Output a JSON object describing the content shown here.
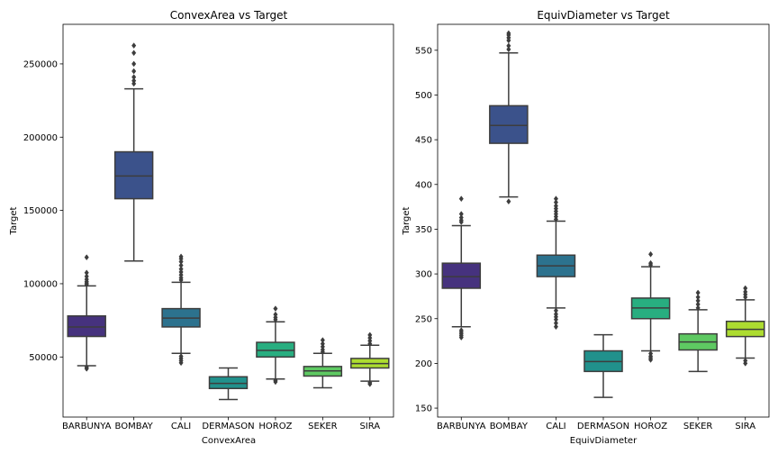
{
  "chart_data": [
    {
      "type": "boxplot",
      "title": "ConvexArea vs Target",
      "xlabel": "ConvexArea",
      "ylabel": "Target",
      "categories": [
        "BARBUNYA",
        "BOMBAY",
        "CALI",
        "DERMASON",
        "HOROZ",
        "SEKER",
        "SIRA"
      ],
      "ylim": [
        9000,
        277000
      ],
      "yticks": [
        50000,
        100000,
        150000,
        200000,
        250000
      ],
      "ytick_labels": [
        "50000",
        "100000",
        "150000",
        "200000",
        "250000"
      ],
      "boxes": [
        {
          "whislo": 44000,
          "q1": 64000,
          "med": 70500,
          "q3": 78000,
          "whishi": 98500,
          "fliers": [
            42000,
            43000,
            99500,
            100500,
            101500,
            103000,
            105000,
            107500,
            118000
          ]
        },
        {
          "whislo": 115500,
          "q1": 158000,
          "med": 173500,
          "q3": 190000,
          "whishi": 233000,
          "fliers": [
            236500,
            238500,
            241000,
            245000,
            250000,
            257500,
            262500
          ]
        },
        {
          "whislo": 52500,
          "q1": 70500,
          "med": 76500,
          "q3": 83000,
          "whishi": 101000,
          "fliers": [
            46000,
            47500,
            49000,
            50500,
            102500,
            104000,
            106000,
            108000,
            110000,
            112500,
            115000,
            117000,
            118500
          ]
        },
        {
          "whislo": 21000,
          "q1": 28500,
          "med": 32000,
          "q3": 36500,
          "whishi": 42500,
          "fliers": []
        },
        {
          "whislo": 35000,
          "q1": 50000,
          "med": 54500,
          "q3": 60000,
          "whishi": 74000,
          "fliers": [
            33000,
            34000,
            75500,
            77000,
            79000,
            83000
          ]
        },
        {
          "whislo": 29000,
          "q1": 37000,
          "med": 40500,
          "q3": 43500,
          "whishi": 52500,
          "fliers": [
            53500,
            55000,
            57000,
            59000,
            61500
          ]
        },
        {
          "whislo": 33500,
          "q1": 42500,
          "med": 45500,
          "q3": 49000,
          "whishi": 58000,
          "fliers": [
            31500,
            32500,
            59000,
            61000,
            63000,
            65000
          ]
        }
      ]
    },
    {
      "type": "boxplot",
      "title": "EquivDiameter vs Target",
      "xlabel": "EquivDiameter",
      "ylabel": "Target",
      "categories": [
        "BARBUNYA",
        "BOMBAY",
        "CALI",
        "DERMASON",
        "HOROZ",
        "SEKER",
        "SIRA"
      ],
      "ylim": [
        140,
        579
      ],
      "yticks": [
        150,
        200,
        250,
        300,
        350,
        400,
        450,
        500,
        550
      ],
      "ytick_labels": [
        "150",
        "200",
        "250",
        "300",
        "350",
        "400",
        "450",
        "500",
        "550"
      ],
      "boxes": [
        {
          "whislo": 241,
          "q1": 284,
          "med": 297,
          "q3": 312,
          "whishi": 354,
          "fliers": [
            229,
            231,
            233,
            235,
            237,
            358,
            360,
            363,
            367,
            384
          ]
        },
        {
          "whislo": 386,
          "q1": 446,
          "med": 466,
          "q3": 488,
          "whishi": 547,
          "fliers": [
            381,
            551,
            555,
            561,
            564,
            567,
            569
          ]
        },
        {
          "whislo": 262,
          "q1": 297,
          "med": 309,
          "q3": 321,
          "whishi": 359,
          "fliers": [
            241,
            245,
            249,
            252,
            255,
            259,
            361,
            364,
            367,
            370,
            373,
            376,
            380,
            384
          ]
        },
        {
          "whislo": 162,
          "q1": 191,
          "med": 202,
          "q3": 214,
          "whishi": 232,
          "fliers": []
        },
        {
          "whislo": 214,
          "q1": 250,
          "med": 262,
          "q3": 273,
          "whishi": 308,
          "fliers": [
            204,
            206,
            208,
            211,
            310,
            312,
            322
          ]
        },
        {
          "whislo": 191,
          "q1": 215,
          "med": 224,
          "q3": 233,
          "whishi": 260,
          "fliers": [
            262,
            266,
            270,
            274,
            279
          ]
        },
        {
          "whislo": 206,
          "q1": 230,
          "med": 238,
          "q3": 247,
          "whishi": 271,
          "fliers": [
            200,
            203,
            274,
            277,
            280,
            284
          ]
        }
      ]
    }
  ],
  "palette": [
    "#46327e",
    "#3b528b",
    "#2c728e",
    "#21918c",
    "#28ae80",
    "#5ec962",
    "#addc30"
  ]
}
